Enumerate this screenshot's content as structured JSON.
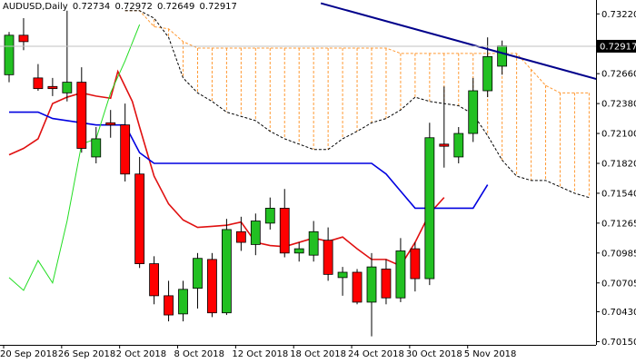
{
  "header": {
    "symbol": "AUDUSD,Daily",
    "open": "0.72734",
    "high": "0.72972",
    "low": "0.72649",
    "close": "0.72917"
  },
  "chart_data": {
    "type": "candlestick",
    "symbol": "AUDUSD",
    "timeframe": "Daily",
    "ylim": [
      0.7012,
      0.7335
    ],
    "y_ticks": [
      0.7322,
      0.7294,
      0.7266,
      0.7238,
      0.721,
      0.7182,
      0.7154,
      0.7126,
      0.7098,
      0.707,
      0.7043,
      0.7015
    ],
    "y_tick_labels": [
      "0.73220",
      "0.72917",
      "0.72660",
      "0.72380",
      "0.72100",
      "0.71820",
      "0.71540",
      "0.71265",
      "0.70985",
      "0.70705",
      "0.70430",
      "0.70150"
    ],
    "current_price": 0.72917,
    "current_price_label": "0.72917",
    "x_tick_labels": [
      "20 Sep 2018",
      "26 Sep 2018",
      "2 Oct 2018",
      "8 Oct 2018",
      "12 Oct 2018",
      "18 Oct 2018",
      "24 Oct 2018",
      "30 Oct 2018",
      "5 Nov 2018"
    ],
    "x_tick_index": [
      0,
      4,
      8,
      12,
      16,
      20,
      24,
      28,
      32
    ],
    "candles": [
      {
        "o": 0.7265,
        "h": 0.7305,
        "l": 0.7258,
        "c": 0.7302
      },
      {
        "o": 0.7302,
        "h": 0.7318,
        "l": 0.7288,
        "c": 0.7296
      },
      {
        "o": 0.7262,
        "h": 0.7275,
        "l": 0.725,
        "c": 0.7252
      },
      {
        "o": 0.7254,
        "h": 0.7262,
        "l": 0.7245,
        "c": 0.7252
      },
      {
        "o": 0.7248,
        "h": 0.7325,
        "l": 0.724,
        "c": 0.7258
      },
      {
        "o": 0.7258,
        "h": 0.7272,
        "l": 0.7192,
        "c": 0.7196
      },
      {
        "o": 0.7188,
        "h": 0.7216,
        "l": 0.7182,
        "c": 0.7205
      },
      {
        "o": 0.722,
        "h": 0.7232,
        "l": 0.7206,
        "c": 0.7218
      },
      {
        "o": 0.7218,
        "h": 0.7238,
        "l": 0.7165,
        "c": 0.7172
      },
      {
        "o": 0.7172,
        "h": 0.7188,
        "l": 0.7084,
        "c": 0.7088
      },
      {
        "o": 0.7088,
        "h": 0.7095,
        "l": 0.705,
        "c": 0.7058
      },
      {
        "o": 0.7058,
        "h": 0.7072,
        "l": 0.7034,
        "c": 0.704
      },
      {
        "o": 0.7041,
        "h": 0.7072,
        "l": 0.7034,
        "c": 0.7064
      },
      {
        "o": 0.7065,
        "h": 0.7098,
        "l": 0.7046,
        "c": 0.7093
      },
      {
        "o": 0.7092,
        "h": 0.7098,
        "l": 0.7038,
        "c": 0.7042
      },
      {
        "o": 0.7042,
        "h": 0.713,
        "l": 0.704,
        "c": 0.712
      },
      {
        "o": 0.7118,
        "h": 0.7132,
        "l": 0.71,
        "c": 0.7108
      },
      {
        "o": 0.7106,
        "h": 0.7135,
        "l": 0.7096,
        "c": 0.7128
      },
      {
        "o": 0.7126,
        "h": 0.715,
        "l": 0.712,
        "c": 0.714
      },
      {
        "o": 0.714,
        "h": 0.7158,
        "l": 0.7094,
        "c": 0.7098
      },
      {
        "o": 0.7098,
        "h": 0.7108,
        "l": 0.709,
        "c": 0.7102
      },
      {
        "o": 0.7096,
        "h": 0.7128,
        "l": 0.709,
        "c": 0.7118
      },
      {
        "o": 0.711,
        "h": 0.7122,
        "l": 0.7072,
        "c": 0.7078
      },
      {
        "o": 0.7075,
        "h": 0.7085,
        "l": 0.7058,
        "c": 0.708
      },
      {
        "o": 0.708,
        "h": 0.7083,
        "l": 0.705,
        "c": 0.7052
      },
      {
        "o": 0.7052,
        "h": 0.7098,
        "l": 0.702,
        "c": 0.7085
      },
      {
        "o": 0.7083,
        "h": 0.7092,
        "l": 0.705,
        "c": 0.7056
      },
      {
        "o": 0.7056,
        "h": 0.7112,
        "l": 0.7052,
        "c": 0.71
      },
      {
        "o": 0.7102,
        "h": 0.7108,
        "l": 0.7062,
        "c": 0.7074
      },
      {
        "o": 0.7074,
        "h": 0.722,
        "l": 0.7068,
        "c": 0.7206
      },
      {
        "o": 0.72,
        "h": 0.7254,
        "l": 0.7178,
        "c": 0.7198
      },
      {
        "o": 0.7188,
        "h": 0.7216,
        "l": 0.7182,
        "c": 0.721
      },
      {
        "o": 0.721,
        "h": 0.7262,
        "l": 0.7202,
        "c": 0.725
      },
      {
        "o": 0.725,
        "h": 0.73,
        "l": 0.7244,
        "c": 0.7282
      },
      {
        "o": 0.7273,
        "h": 0.7297,
        "l": 0.7265,
        "c": 0.7292
      }
    ],
    "trendline": {
      "x": [
        21.5,
        40.5
      ],
      "y": [
        0.7332,
        0.7261
      ]
    },
    "series": [
      {
        "type": "line",
        "x": [
          0,
          1,
          2,
          3,
          4,
          5,
          6,
          7,
          7.5,
          8.5,
          9,
          10,
          11,
          12,
          13,
          14,
          15,
          16,
          17,
          18,
          19,
          20,
          21,
          22,
          23,
          24,
          25,
          26,
          27,
          28,
          29,
          30
        ],
        "y": [
          0.719,
          0.7196,
          0.7205,
          0.7238,
          0.7244,
          0.7248,
          0.7245,
          0.7243,
          0.7268,
          0.724,
          0.7216,
          0.717,
          0.7144,
          0.7129,
          0.7122,
          0.7123,
          0.7124,
          0.7127,
          0.7108,
          0.7105,
          0.7104,
          0.7108,
          0.7112,
          0.7109,
          0.7113,
          0.7102,
          0.7092,
          0.7092,
          0.7086,
          0.7108,
          0.7135,
          0.715
        ]
      },
      {
        "type": "line",
        "x": [
          0,
          1,
          2,
          3,
          4,
          5,
          6,
          7,
          8,
          9,
          10,
          11,
          12,
          13,
          14,
          15,
          16,
          17,
          18,
          19,
          20,
          21,
          22,
          23,
          24,
          25,
          26,
          27,
          28,
          29,
          30,
          31,
          32,
          33
        ],
        "y": [
          0.723,
          0.723,
          0.723,
          0.7224,
          0.7222,
          0.722,
          0.7218,
          0.7218,
          0.7218,
          0.7192,
          0.7182,
          0.7182,
          0.7182,
          0.7182,
          0.7182,
          0.7182,
          0.7182,
          0.7182,
          0.7182,
          0.7182,
          0.7182,
          0.7182,
          0.7182,
          0.7182,
          0.7182,
          0.7182,
          0.7172,
          0.7156,
          0.714,
          0.714,
          0.714,
          0.714,
          0.714,
          0.7162
        ]
      },
      {
        "type": "line",
        "x": [
          0,
          1,
          2,
          3,
          4,
          5,
          6,
          7,
          8,
          9
        ],
        "y": [
          0.7075,
          0.7063,
          0.7091,
          0.707,
          0.7128,
          0.72,
          0.7205,
          0.7248,
          0.7278,
          0.7312
        ]
      }
    ],
    "cloud": {
      "x": [
        8,
        9,
        10,
        11,
        12,
        13,
        14,
        15,
        16,
        17,
        18,
        19,
        20,
        21,
        22,
        23,
        24,
        25,
        26,
        27,
        28,
        29,
        30,
        31,
        32,
        33,
        34,
        35,
        36,
        37,
        38,
        39,
        40
      ],
      "span_a": [
        0.7325,
        0.7325,
        0.731,
        0.7308,
        0.7296,
        0.729,
        0.729,
        0.729,
        0.729,
        0.729,
        0.729,
        0.729,
        0.729,
        0.729,
        0.729,
        0.729,
        0.729,
        0.729,
        0.729,
        0.7285,
        0.7285,
        0.7285,
        0.7285,
        0.7285,
        0.7285,
        0.7285,
        0.7285,
        0.7285,
        0.727,
        0.7255,
        0.7248,
        0.7248,
        0.7248
      ],
      "span_b": [
        0.7325,
        0.7325,
        0.7318,
        0.73,
        0.7262,
        0.7248,
        0.724,
        0.723,
        0.7226,
        0.7222,
        0.7212,
        0.7205,
        0.72,
        0.7195,
        0.7195,
        0.7205,
        0.7212,
        0.722,
        0.7224,
        0.7232,
        0.7244,
        0.724,
        0.7238,
        0.7236,
        0.7228,
        0.7208,
        0.7185,
        0.717,
        0.7166,
        0.7166,
        0.716,
        0.7154,
        0.715
      ]
    },
    "colors": {
      "bull_body": "#22c022",
      "bear_body": "#ff0000",
      "wick": "#000000",
      "tenkan": "#e01010",
      "kijun": "#0000e0",
      "chikou": "#22dd22",
      "cloud_edge": "#ff9933",
      "span_b_edge": "#000000",
      "trendline": "#00008b",
      "price_line": "#c0c0c0",
      "axis": "#000000",
      "grid": "#e8e8e8"
    }
  }
}
